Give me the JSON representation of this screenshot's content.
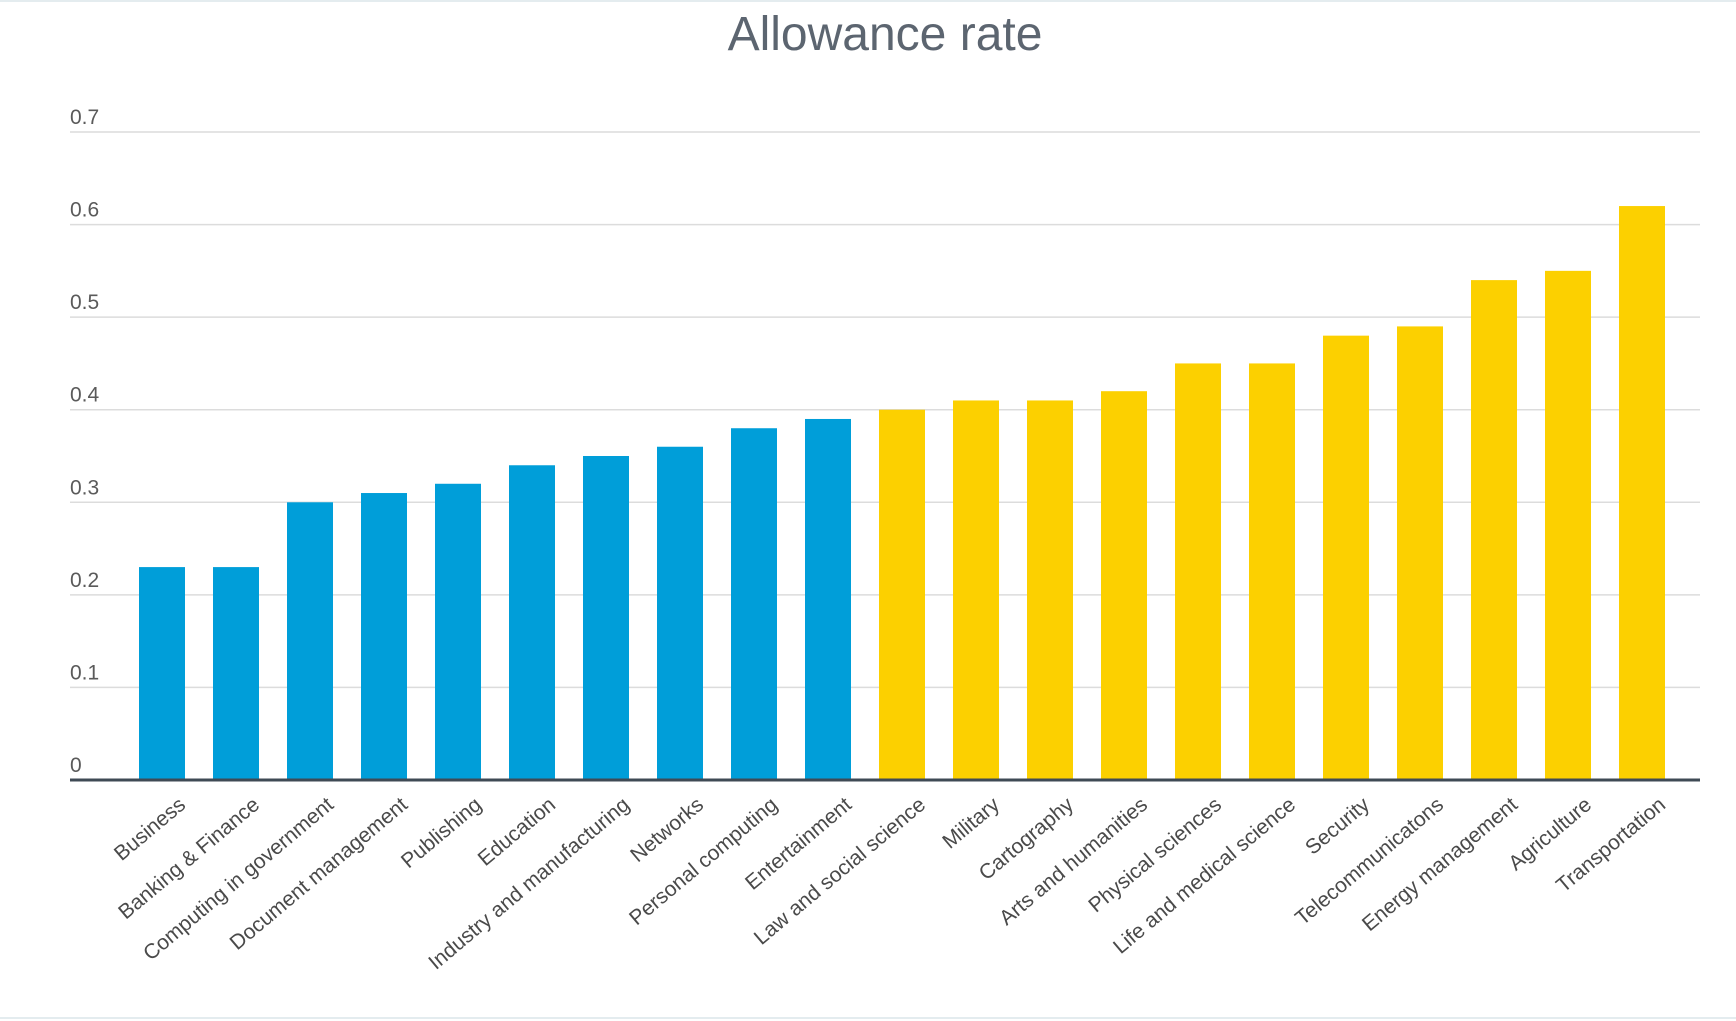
{
  "chart_data": {
    "type": "bar",
    "title": "Allowance rate",
    "xlabel": "",
    "ylabel": "",
    "ylim": [
      0,
      0.7
    ],
    "yticks": [
      "0",
      "0.1",
      "0.2",
      "0.3",
      "0.4",
      "0.5",
      "0.6",
      "0.7"
    ],
    "grid": true,
    "legend": "none",
    "categories": [
      "Business",
      "Banking & Finance",
      "Computing in government",
      "Document management",
      "Publishing",
      "Education",
      "Industry and manufacturing",
      "Networks",
      "Personal computing",
      "Entertainment",
      "Law and social science",
      "Military",
      "Cartography",
      "Arts and humanities",
      "Physical sciences",
      "Life and medical science",
      "Security",
      "Telecommunicatons",
      "Energy management",
      "Agriculture",
      "Transportation"
    ],
    "values": [
      0.23,
      0.23,
      0.3,
      0.31,
      0.32,
      0.34,
      0.35,
      0.36,
      0.38,
      0.39,
      0.4,
      0.41,
      0.41,
      0.42,
      0.45,
      0.45,
      0.48,
      0.49,
      0.54,
      0.55,
      0.62
    ],
    "bar_colors": [
      "#009ed9",
      "#009ed9",
      "#009ed9",
      "#009ed9",
      "#009ed9",
      "#009ed9",
      "#009ed9",
      "#009ed9",
      "#009ed9",
      "#009ed9",
      "#fcd000",
      "#fcd000",
      "#fcd000",
      "#fcd000",
      "#fcd000",
      "#fcd000",
      "#fcd000",
      "#fcd000",
      "#fcd000",
      "#fcd000",
      "#fcd000"
    ],
    "colors": {
      "blue": "#009ed9",
      "yellow": "#fcd000",
      "gridline": "#dcdcdc",
      "baseline": "#3f4a55"
    }
  }
}
